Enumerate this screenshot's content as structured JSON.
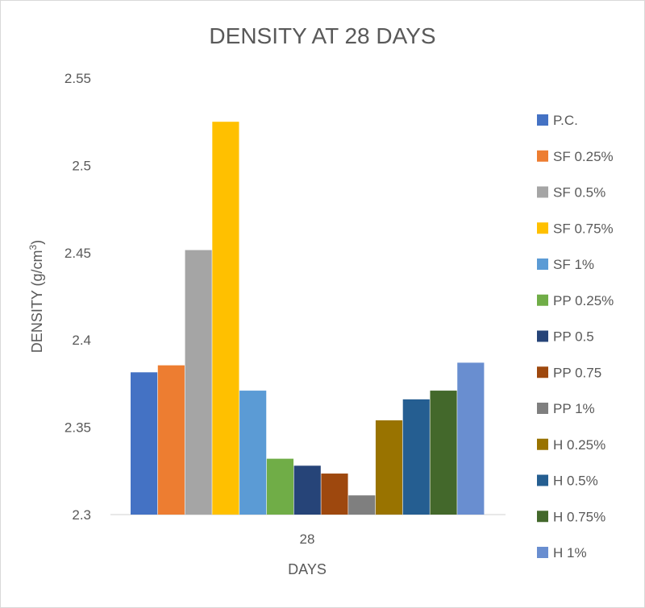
{
  "chart_data": {
    "type": "bar",
    "title": "DENSITY AT 28 DAYS",
    "xlabel": "DAYS",
    "ylabel": "DENSITY (g/cm",
    "ylabel_sup": "3",
    "ylabel_close": ")",
    "ylim": [
      2.3,
      2.55
    ],
    "yticks": [
      2.3,
      2.35,
      2.4,
      2.45,
      2.5,
      2.55
    ],
    "ytick_labels": [
      "2.3",
      "2.35",
      "2.4",
      "2.45",
      "2.5",
      "2.55"
    ],
    "categories": [
      "28"
    ],
    "grid": false,
    "legend_position": "right",
    "series": [
      {
        "name": "P.C.",
        "values": [
          2.3815
        ],
        "color": "#4472C4"
      },
      {
        "name": "SF 0.25%",
        "values": [
          2.3855
        ],
        "color": "#ED7D31"
      },
      {
        "name": "SF 0.5%",
        "values": [
          2.4515
        ],
        "color": "#A5A5A5"
      },
      {
        "name": "SF 0.75%",
        "values": [
          2.525
        ],
        "color": "#FFC000"
      },
      {
        "name": "SF 1%",
        "values": [
          2.371
        ],
        "color": "#5B9BD5"
      },
      {
        "name": "PP 0.25%",
        "values": [
          2.332
        ],
        "color": "#70AD47"
      },
      {
        "name": "PP 0.5",
        "values": [
          2.328
        ],
        "color": "#264478"
      },
      {
        "name": "PP 0.75",
        "values": [
          2.3235
        ],
        "color": "#9E480E"
      },
      {
        "name": "PP 1%",
        "values": [
          2.311
        ],
        "color": "#7F7F7F"
      },
      {
        "name": "H 0.25%",
        "values": [
          2.354
        ],
        "color": "#997300"
      },
      {
        "name": "H 0.5%",
        "values": [
          2.366
        ],
        "color": "#255E91"
      },
      {
        "name": "H 0.75%",
        "values": [
          2.371
        ],
        "color": "#43682B"
      },
      {
        "name": "H 1%",
        "values": [
          2.387
        ],
        "color": "#698ED0"
      }
    ]
  }
}
